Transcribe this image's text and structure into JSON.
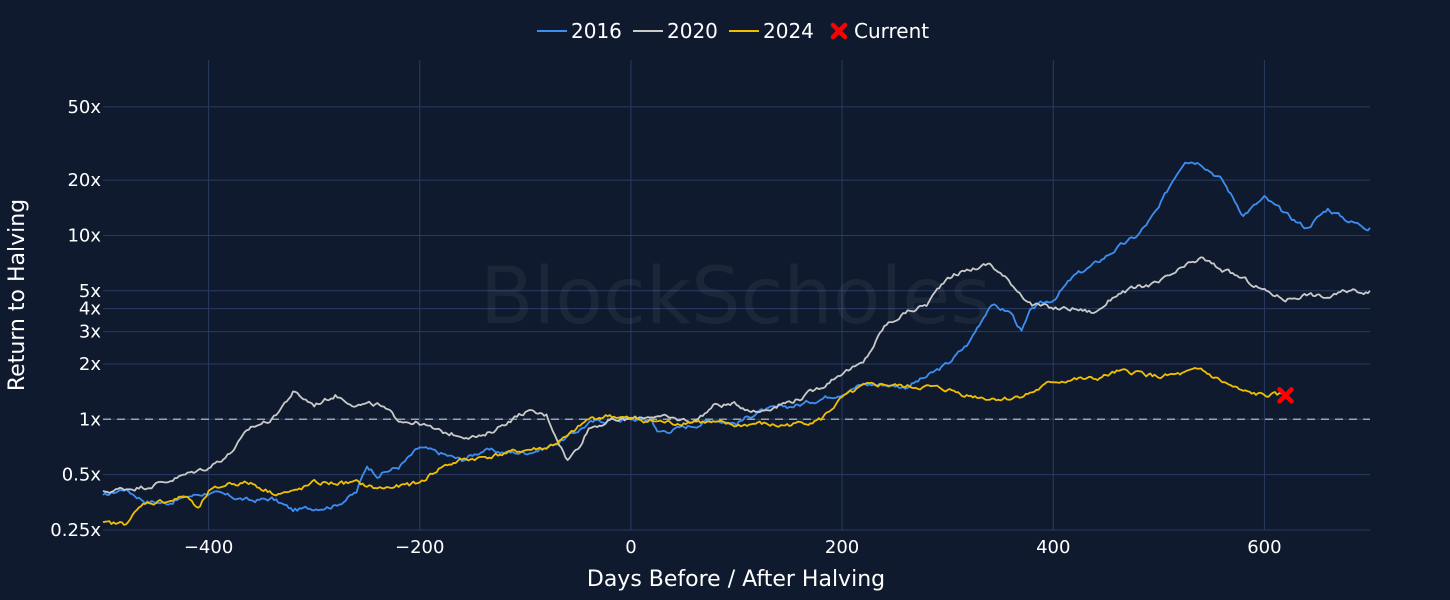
{
  "watermark": "BlockScholes",
  "colors": {
    "background": "#0f1a2e",
    "grid": "#2a3a63",
    "reference_line": "#9aa3b2",
    "text": "#ffffff"
  },
  "chart_data": {
    "type": "line",
    "title": "",
    "xlabel": "Days Before / After Halving",
    "ylabel": "Return to Halving",
    "xlim": [
      -500,
      700
    ],
    "ylim": [
      0.25,
      90
    ],
    "yscale": "log",
    "grid": true,
    "legend_position": "top-center",
    "x_ticks": [
      -400,
      -200,
      0,
      200,
      400,
      600
    ],
    "x_tick_labels": [
      "−400",
      "−200",
      "0",
      "200",
      "400",
      "600"
    ],
    "y_ticks": [
      0.25,
      0.5,
      1,
      2,
      3,
      4,
      5,
      10,
      20,
      50
    ],
    "y_tick_labels": [
      "0.25x",
      "0.5x",
      "1x",
      "2x",
      "3x",
      "4x",
      "5x",
      "10x",
      "20x",
      "50x"
    ],
    "reference_line": {
      "y": 1,
      "style": "dashed"
    },
    "series": [
      {
        "name": "2016",
        "color": "#3d8ef0",
        "points": [
          [
            -500,
            0.38
          ],
          [
            -480,
            0.42
          ],
          [
            -460,
            0.36
          ],
          [
            -440,
            0.35
          ],
          [
            -420,
            0.38
          ],
          [
            -400,
            0.4
          ],
          [
            -380,
            0.38
          ],
          [
            -360,
            0.36
          ],
          [
            -340,
            0.37
          ],
          [
            -320,
            0.32
          ],
          [
            -300,
            0.33
          ],
          [
            -280,
            0.34
          ],
          [
            -260,
            0.4
          ],
          [
            -250,
            0.56
          ],
          [
            -240,
            0.5
          ],
          [
            -220,
            0.55
          ],
          [
            -200,
            0.7
          ],
          [
            -180,
            0.65
          ],
          [
            -160,
            0.6
          ],
          [
            -140,
            0.68
          ],
          [
            -120,
            0.66
          ],
          [
            -100,
            0.66
          ],
          [
            -80,
            0.7
          ],
          [
            -60,
            0.8
          ],
          [
            -40,
            0.95
          ],
          [
            -20,
            1.0
          ],
          [
            0,
            1.0
          ],
          [
            20,
            1.0
          ],
          [
            25,
            0.85
          ],
          [
            40,
            0.88
          ],
          [
            60,
            0.93
          ],
          [
            80,
            1.0
          ],
          [
            100,
            0.95
          ],
          [
            120,
            1.1
          ],
          [
            140,
            1.15
          ],
          [
            160,
            1.2
          ],
          [
            180,
            1.3
          ],
          [
            200,
            1.4
          ],
          [
            220,
            1.55
          ],
          [
            240,
            1.55
          ],
          [
            260,
            1.5
          ],
          [
            280,
            1.7
          ],
          [
            300,
            2.0
          ],
          [
            320,
            2.6
          ],
          [
            340,
            4.2
          ],
          [
            360,
            3.8
          ],
          [
            370,
            3.0
          ],
          [
            380,
            4.0
          ],
          [
            400,
            4.5
          ],
          [
            420,
            6.0
          ],
          [
            440,
            7.0
          ],
          [
            460,
            8.5
          ],
          [
            480,
            10.0
          ],
          [
            500,
            14.0
          ],
          [
            515,
            21.0
          ],
          [
            525,
            26.0
          ],
          [
            540,
            25.0
          ],
          [
            560,
            20.0
          ],
          [
            580,
            13.0
          ],
          [
            600,
            16.0
          ],
          [
            620,
            13.0
          ],
          [
            640,
            11.0
          ],
          [
            660,
            14.0
          ],
          [
            680,
            12.0
          ],
          [
            700,
            11.0
          ]
        ]
      },
      {
        "name": "2020",
        "color": "#c9c9c9",
        "points": [
          [
            -500,
            0.4
          ],
          [
            -480,
            0.42
          ],
          [
            -460,
            0.43
          ],
          [
            -440,
            0.46
          ],
          [
            -400,
            0.55
          ],
          [
            -380,
            0.65
          ],
          [
            -360,
            0.9
          ],
          [
            -340,
            1.0
          ],
          [
            -320,
            1.4
          ],
          [
            -300,
            1.2
          ],
          [
            -280,
            1.35
          ],
          [
            -260,
            1.2
          ],
          [
            -240,
            1.2
          ],
          [
            -220,
            1.0
          ],
          [
            -200,
            0.95
          ],
          [
            -180,
            0.85
          ],
          [
            -160,
            0.82
          ],
          [
            -140,
            0.8
          ],
          [
            -120,
            0.95
          ],
          [
            -100,
            1.1
          ],
          [
            -80,
            1.05
          ],
          [
            -60,
            0.6
          ],
          [
            -50,
            0.7
          ],
          [
            -40,
            0.9
          ],
          [
            -20,
            0.98
          ],
          [
            0,
            1.0
          ],
          [
            20,
            1.05
          ],
          [
            40,
            1.0
          ],
          [
            60,
            0.98
          ],
          [
            80,
            1.2
          ],
          [
            100,
            1.2
          ],
          [
            120,
            1.1
          ],
          [
            140,
            1.2
          ],
          [
            160,
            1.3
          ],
          [
            180,
            1.5
          ],
          [
            200,
            1.8
          ],
          [
            220,
            2.0
          ],
          [
            240,
            3.2
          ],
          [
            260,
            3.8
          ],
          [
            280,
            4.2
          ],
          [
            300,
            6.0
          ],
          [
            320,
            6.5
          ],
          [
            340,
            7.0
          ],
          [
            360,
            5.5
          ],
          [
            380,
            4.2
          ],
          [
            400,
            4.0
          ],
          [
            420,
            4.0
          ],
          [
            440,
            3.8
          ],
          [
            460,
            4.8
          ],
          [
            480,
            5.2
          ],
          [
            500,
            5.5
          ],
          [
            520,
            6.5
          ],
          [
            540,
            7.5
          ],
          [
            560,
            6.5
          ],
          [
            580,
            5.8
          ],
          [
            600,
            5.0
          ],
          [
            620,
            4.5
          ],
          [
            640,
            4.8
          ],
          [
            660,
            4.6
          ],
          [
            680,
            5.0
          ],
          [
            700,
            5.0
          ]
        ]
      },
      {
        "name": "2024",
        "color": "#f0c000",
        "points": [
          [
            -500,
            0.27
          ],
          [
            -480,
            0.27
          ],
          [
            -460,
            0.35
          ],
          [
            -440,
            0.36
          ],
          [
            -420,
            0.38
          ],
          [
            -410,
            0.32
          ],
          [
            -400,
            0.4
          ],
          [
            -380,
            0.45
          ],
          [
            -360,
            0.45
          ],
          [
            -340,
            0.4
          ],
          [
            -320,
            0.4
          ],
          [
            -300,
            0.45
          ],
          [
            -280,
            0.45
          ],
          [
            -260,
            0.45
          ],
          [
            -240,
            0.42
          ],
          [
            -220,
            0.43
          ],
          [
            -200,
            0.45
          ],
          [
            -180,
            0.55
          ],
          [
            -160,
            0.6
          ],
          [
            -140,
            0.62
          ],
          [
            -120,
            0.65
          ],
          [
            -100,
            0.68
          ],
          [
            -80,
            0.7
          ],
          [
            -60,
            0.8
          ],
          [
            -40,
            1.0
          ],
          [
            -20,
            1.05
          ],
          [
            0,
            1.0
          ],
          [
            20,
            0.98
          ],
          [
            40,
            0.95
          ],
          [
            60,
            0.98
          ],
          [
            80,
            0.95
          ],
          [
            100,
            0.92
          ],
          [
            120,
            0.95
          ],
          [
            140,
            0.92
          ],
          [
            160,
            0.95
          ],
          [
            180,
            1.0
          ],
          [
            200,
            1.3
          ],
          [
            220,
            1.5
          ],
          [
            240,
            1.55
          ],
          [
            260,
            1.5
          ],
          [
            280,
            1.5
          ],
          [
            300,
            1.45
          ],
          [
            320,
            1.35
          ],
          [
            340,
            1.3
          ],
          [
            360,
            1.3
          ],
          [
            380,
            1.4
          ],
          [
            400,
            1.6
          ],
          [
            420,
            1.65
          ],
          [
            440,
            1.65
          ],
          [
            460,
            1.8
          ],
          [
            480,
            1.8
          ],
          [
            500,
            1.7
          ],
          [
            520,
            1.75
          ],
          [
            540,
            1.85
          ],
          [
            560,
            1.6
          ],
          [
            580,
            1.4
          ],
          [
            600,
            1.35
          ],
          [
            620,
            1.35
          ]
        ]
      },
      {
        "name": "Current",
        "color": "#ff0000",
        "marker": "x",
        "points": [
          [
            620,
            1.35
          ]
        ]
      }
    ]
  }
}
